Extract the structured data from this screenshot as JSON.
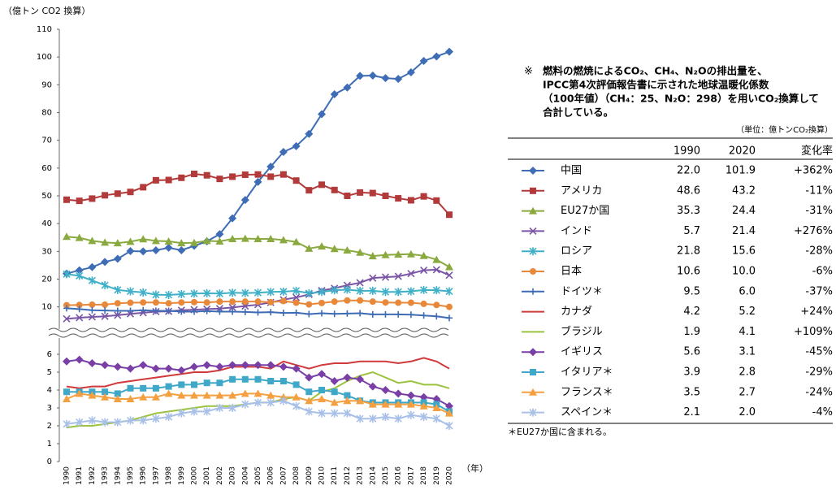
{
  "chart_data": [
    {
      "type": "line",
      "y_label": "（億トン CO2 換算）",
      "ylim": [
        2,
        110
      ],
      "yticks": [
        10,
        20,
        30,
        40,
        50,
        60,
        70,
        80,
        90,
        100,
        110
      ],
      "series": [
        {
          "name": "中国",
          "color": "#3e6db5",
          "marker": "diamond",
          "values": [
            22.0,
            23.2,
            24.3,
            26.2,
            27.3,
            30.1,
            30.0,
            30.4,
            31.3,
            30.4,
            32.0,
            33.6,
            36.2,
            41.9,
            48.5,
            55.0,
            60.5,
            65.8,
            67.9,
            72.3,
            79.4,
            86.6,
            89.0,
            93.2,
            93.3,
            92.4,
            92.1,
            94.5,
            98.6,
            100.2,
            101.9
          ]
        },
        {
          "name": "アメリカ",
          "color": "#b23a3a",
          "marker": "square",
          "values": [
            48.6,
            48.2,
            49.0,
            50.2,
            50.8,
            51.4,
            53.1,
            55.6,
            55.7,
            56.5,
            57.9,
            57.4,
            56.1,
            56.9,
            57.6,
            57.7,
            56.9,
            57.7,
            55.5,
            52.0,
            54.0,
            52.1,
            50.0,
            51.2,
            51.0,
            50.0,
            49.1,
            48.4,
            49.8,
            48.3,
            43.2
          ]
        },
        {
          "name": "EU27か国",
          "color": "#8aaa3f",
          "marker": "triangle",
          "values": [
            35.3,
            34.9,
            33.8,
            33.2,
            33.0,
            33.5,
            34.4,
            33.8,
            33.6,
            33.0,
            33.1,
            33.8,
            33.6,
            34.5,
            34.6,
            34.5,
            34.5,
            34.1,
            33.4,
            31.0,
            31.8,
            30.9,
            30.4,
            29.6,
            28.3,
            28.7,
            28.9,
            29.0,
            28.4,
            27.0,
            24.4
          ]
        },
        {
          "name": "インド",
          "color": "#7a55a6",
          "marker": "x",
          "values": [
            5.7,
            6.1,
            6.4,
            6.6,
            7.0,
            7.5,
            7.9,
            8.3,
            8.4,
            8.8,
            9.0,
            9.2,
            9.4,
            9.8,
            10.3,
            10.8,
            11.6,
            12.6,
            13.4,
            14.5,
            15.9,
            16.7,
            17.8,
            18.7,
            20.4,
            20.7,
            21.0,
            22.0,
            23.2,
            23.4,
            21.4
          ]
        },
        {
          "name": "ロシア",
          "color": "#3fb0c8",
          "marker": "asterisk",
          "values": [
            21.8,
            21.2,
            19.5,
            17.8,
            16.1,
            15.6,
            15.2,
            14.4,
            14.3,
            14.6,
            14.8,
            14.9,
            14.8,
            15.1,
            15.0,
            15.1,
            15.4,
            15.5,
            15.8,
            14.9,
            15.4,
            16.0,
            16.2,
            15.8,
            15.8,
            15.4,
            15.4,
            15.6,
            16.1,
            16.0,
            15.6
          ]
        },
        {
          "name": "日本",
          "color": "#e8883a",
          "marker": "circle",
          "values": [
            10.6,
            10.7,
            10.8,
            10.8,
            11.3,
            11.5,
            11.6,
            11.6,
            11.3,
            11.6,
            11.7,
            11.6,
            11.9,
            11.9,
            11.9,
            11.9,
            11.7,
            12.1,
            11.5,
            10.9,
            11.4,
            11.9,
            12.3,
            12.3,
            11.9,
            11.6,
            11.5,
            11.5,
            11.1,
            10.7,
            10.0
          ]
        },
        {
          "name": "ドイツ＊",
          "color": "#3e6db5",
          "marker": "plus",
          "values": [
            9.5,
            9.2,
            8.8,
            8.7,
            8.6,
            8.6,
            8.8,
            8.6,
            8.6,
            8.3,
            8.3,
            8.5,
            8.3,
            8.3,
            8.2,
            8.0,
            8.1,
            7.8,
            7.9,
            7.4,
            7.7,
            7.5,
            7.6,
            7.7,
            7.3,
            7.3,
            7.3,
            7.2,
            6.9,
            6.6,
            6.0
          ]
        }
      ]
    },
    {
      "type": "line",
      "x_label": "（年）",
      "ylim": [
        0,
        6.3
      ],
      "yticks": [
        0,
        1,
        2,
        3,
        4,
        5,
        6
      ],
      "categories": [
        "1990",
        "1991",
        "1992",
        "1993",
        "1994",
        "1995",
        "1996",
        "1997",
        "1998",
        "1999",
        "2000",
        "2001",
        "2002",
        "2003",
        "2004",
        "2005",
        "2006",
        "2007",
        "2008",
        "2009",
        "2010",
        "2011",
        "2012",
        "2013",
        "2014",
        "2015",
        "2016",
        "2017",
        "2018",
        "2019",
        "2020"
      ],
      "series": [
        {
          "name": "カナダ",
          "color": "#d03a3a",
          "marker": "none",
          "values": [
            4.2,
            4.1,
            4.2,
            4.2,
            4.4,
            4.5,
            4.6,
            4.7,
            4.8,
            4.9,
            5.0,
            5.0,
            5.1,
            5.3,
            5.3,
            5.3,
            5.2,
            5.6,
            5.4,
            5.2,
            5.4,
            5.5,
            5.5,
            5.6,
            5.6,
            5.6,
            5.5,
            5.6,
            5.8,
            5.6,
            5.2
          ]
        },
        {
          "name": "ブラジル",
          "color": "#9bc33f",
          "marker": "none",
          "values": [
            1.9,
            2.0,
            2.0,
            2.1,
            2.2,
            2.3,
            2.5,
            2.7,
            2.8,
            2.9,
            3.0,
            3.1,
            3.1,
            3.1,
            3.2,
            3.3,
            3.3,
            3.5,
            3.6,
            3.4,
            3.9,
            4.1,
            4.5,
            4.8,
            5.0,
            4.7,
            4.4,
            4.5,
            4.3,
            4.3,
            4.1
          ]
        },
        {
          "name": "イギリス",
          "color": "#7a3fa6",
          "marker": "diamond",
          "values": [
            5.6,
            5.7,
            5.5,
            5.4,
            5.3,
            5.2,
            5.4,
            5.2,
            5.2,
            5.1,
            5.3,
            5.4,
            5.3,
            5.4,
            5.4,
            5.4,
            5.4,
            5.3,
            5.2,
            4.7,
            4.9,
            4.5,
            4.7,
            4.6,
            4.2,
            4.0,
            3.8,
            3.7,
            3.6,
            3.5,
            3.1
          ]
        },
        {
          "name": "イタリア＊",
          "color": "#3fa8c8",
          "marker": "square",
          "values": [
            3.9,
            3.9,
            3.9,
            3.9,
            3.8,
            4.1,
            4.1,
            4.1,
            4.2,
            4.3,
            4.3,
            4.4,
            4.4,
            4.6,
            4.6,
            4.6,
            4.5,
            4.5,
            4.3,
            3.9,
            4.0,
            3.9,
            3.7,
            3.4,
            3.3,
            3.3,
            3.3,
            3.3,
            3.3,
            3.2,
            2.8
          ]
        },
        {
          "name": "フランス＊",
          "color": "#f5a040",
          "marker": "triangle",
          "values": [
            3.5,
            3.8,
            3.7,
            3.6,
            3.5,
            3.5,
            3.6,
            3.6,
            3.8,
            3.7,
            3.7,
            3.7,
            3.7,
            3.7,
            3.8,
            3.8,
            3.7,
            3.6,
            3.6,
            3.4,
            3.5,
            3.3,
            3.4,
            3.4,
            3.2,
            3.2,
            3.2,
            3.2,
            3.1,
            3.0,
            2.7
          ]
        },
        {
          "name": "スペイン＊",
          "color": "#a8c0e8",
          "marker": "asterisk",
          "values": [
            2.1,
            2.2,
            2.3,
            2.2,
            2.2,
            2.3,
            2.3,
            2.4,
            2.5,
            2.7,
            2.8,
            2.8,
            3.0,
            3.0,
            3.2,
            3.3,
            3.3,
            3.4,
            3.1,
            2.8,
            2.7,
            2.7,
            2.7,
            2.4,
            2.4,
            2.5,
            2.4,
            2.6,
            2.5,
            2.4,
            2.0
          ]
        }
      ]
    }
  ],
  "note": {
    "mark": "※",
    "lines": [
      "燃料の燃焼によるCO₂、CH₄、N₂Oの排出量を、",
      "IPCC第4次評価報告書に示された地球温暖化係数",
      "（100年値）（CH₄：25、N₂O：298）を用いCO₂換算して",
      "合計している。"
    ]
  },
  "table": {
    "unit": "（単位：億トンCO₂換算）",
    "header": [
      "1990",
      "2020",
      "変化率"
    ],
    "rows": [
      [
        "22.0",
        "101.9",
        "+362%"
      ],
      [
        "48.6",
        "43.2",
        "-11%"
      ],
      [
        "35.3",
        "24.4",
        "-31%"
      ],
      [
        "5.7",
        "21.4",
        "+276%"
      ],
      [
        "21.8",
        "15.6",
        "-28%"
      ],
      [
        "10.6",
        "10.0",
        "-6%"
      ],
      [
        "9.5",
        "6.0",
        "-37%"
      ],
      [
        "4.2",
        "5.2",
        "+24%"
      ],
      [
        "1.9",
        "4.1",
        "+109%"
      ],
      [
        "5.6",
        "3.1",
        "-45%"
      ],
      [
        "3.9",
        "2.8",
        "-29%"
      ],
      [
        "3.5",
        "2.7",
        "-24%"
      ],
      [
        "2.1",
        "2.0",
        "-4%"
      ]
    ],
    "footnote": "＊EU27か国に含まれる。"
  }
}
